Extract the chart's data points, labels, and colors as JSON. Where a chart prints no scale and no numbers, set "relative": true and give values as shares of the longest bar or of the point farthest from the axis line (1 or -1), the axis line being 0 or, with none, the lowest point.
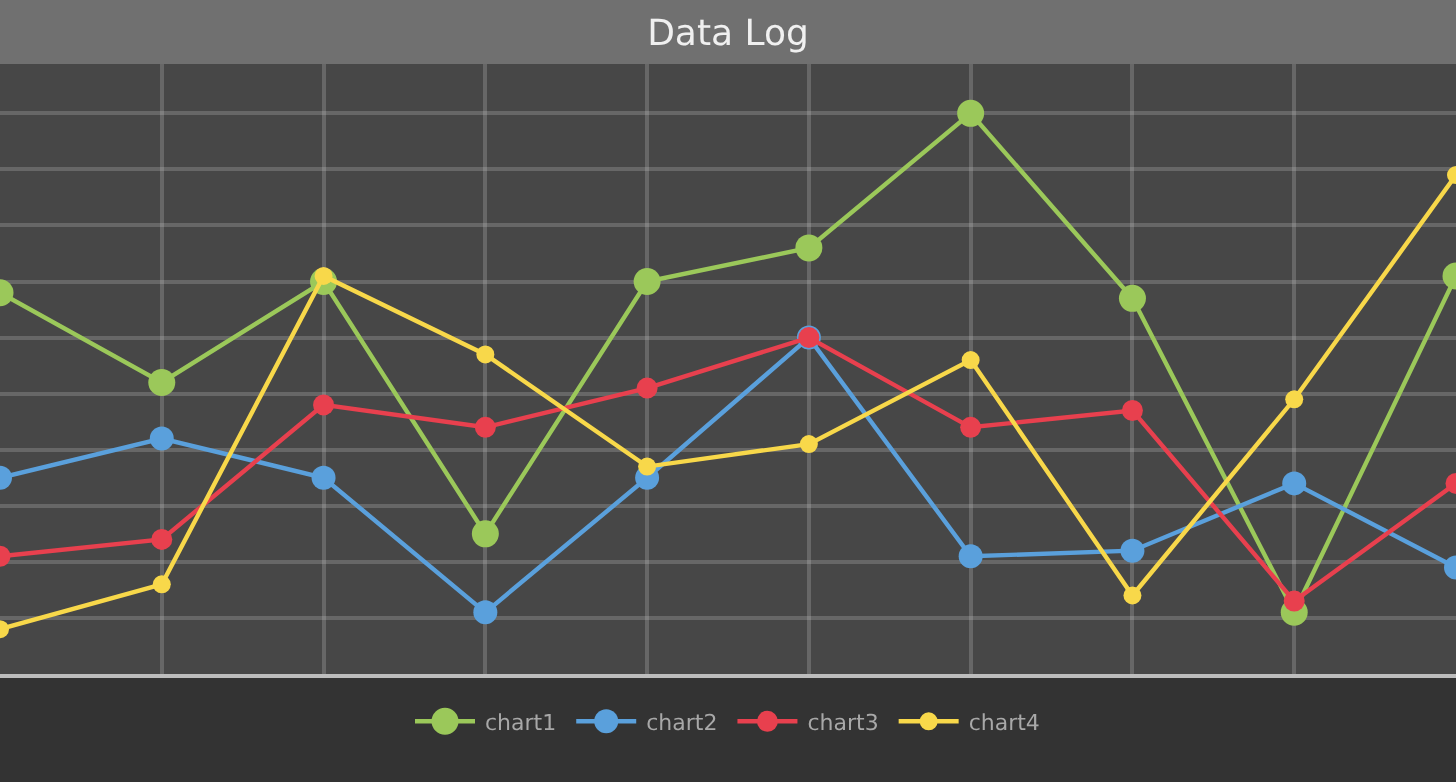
{
  "chart_data": {
    "type": "line",
    "title": "Data Log",
    "relative": true,
    "categories": [
      null,
      null,
      null,
      null,
      null,
      null,
      null,
      null,
      null,
      null
    ],
    "series": [
      {
        "name": "chart1",
        "color": "#9bc85a",
        "values": [
          0.68,
          0.52,
          0.7,
          0.25,
          0.7,
          0.76,
          1.0,
          0.67,
          0.11,
          0.71
        ]
      },
      {
        "name": "chart2",
        "color": "#5aa0dc",
        "values": [
          0.35,
          0.42,
          0.35,
          0.11,
          0.35,
          0.6,
          0.21,
          0.22,
          0.34,
          0.19
        ]
      },
      {
        "name": "chart3",
        "color": "#e8404e",
        "values": [
          0.21,
          0.24,
          0.48,
          0.44,
          0.51,
          0.6,
          0.44,
          0.47,
          0.13,
          0.34
        ]
      },
      {
        "name": "chart4",
        "color": "#f8d84a",
        "values": [
          0.08,
          0.16,
          0.71,
          0.57,
          0.37,
          0.41,
          0.56,
          0.14,
          0.49,
          0.89
        ]
      }
    ],
    "grid": true,
    "legend": "bottom",
    "marker": "circle",
    "line_style": "solid"
  }
}
